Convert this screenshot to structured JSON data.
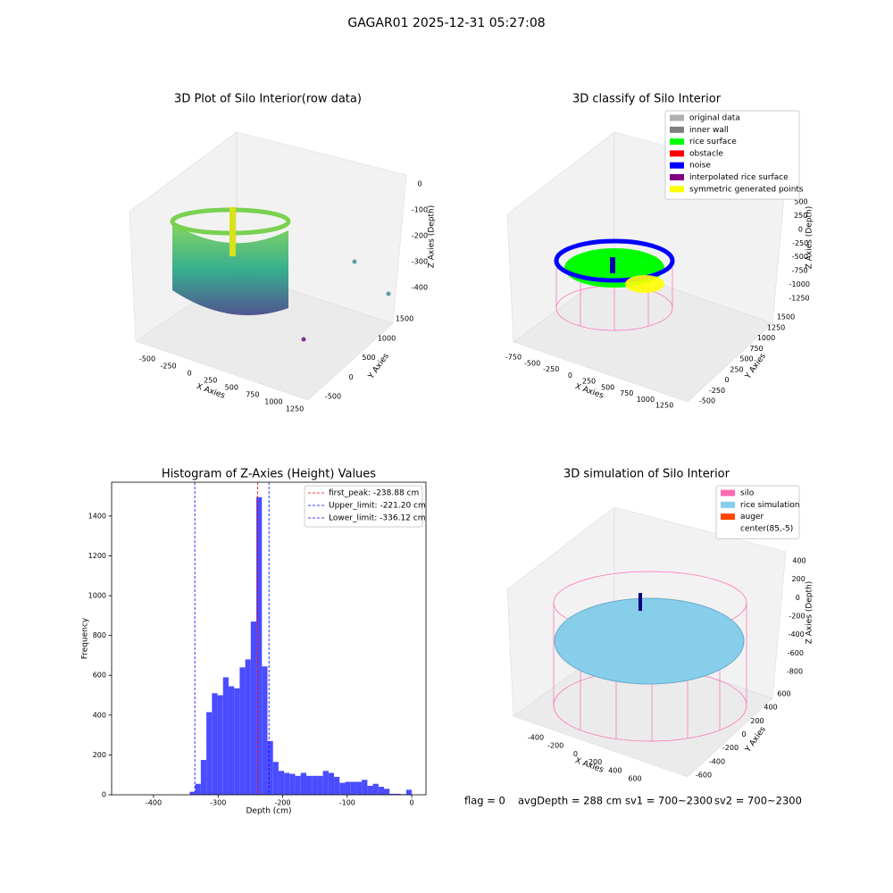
{
  "title": "GAGAR01 2025-12-31 05:27:08",
  "status": [
    "flag = 0",
    "avgDepth = 288 cm",
    "sv1 = 700~2300",
    "sv2 = 700~2300"
  ],
  "chart_data": [
    {
      "type": "scatter3d",
      "title": "3D Plot of Silo Interior(row data)",
      "xlabel": "X Axies",
      "ylabel": "Y Axies",
      "zlabel": "Z Axies (Depth)",
      "xticks": [
        -500,
        -250,
        0,
        250,
        500,
        750,
        1000,
        1250
      ],
      "yticks": [
        -500,
        0,
        500,
        1000,
        1500
      ],
      "zticks": [
        0,
        -100,
        -200,
        -300,
        -400
      ]
    },
    {
      "type": "scatter3d",
      "title": "3D classify of Silo Interior",
      "xlabel": "X Axies",
      "ylabel": "Y Axies",
      "zlabel": "Z Axies (Depth)",
      "xticks": [
        -750,
        -500,
        -250,
        0,
        250,
        500,
        750,
        1000,
        1250
      ],
      "yticks": [
        -500,
        -250,
        0,
        250,
        500,
        750,
        1000,
        1250,
        1500
      ],
      "zticks": [
        500,
        250,
        0,
        -250,
        -500,
        -750,
        -1000,
        -1250
      ],
      "legend": [
        {
          "name": "original data",
          "color": "#b0b0b0"
        },
        {
          "name": "inner wall",
          "color": "#808080"
        },
        {
          "name": "rice surface",
          "color": "#00ff00"
        },
        {
          "name": "obstacle",
          "color": "#ff0000"
        },
        {
          "name": "noise",
          "color": "#0000ff"
        },
        {
          "name": "interpolated rice surface",
          "color": "#800080"
        },
        {
          "name": "symmetric generated points",
          "color": "#ffff00"
        }
      ]
    },
    {
      "type": "histogram",
      "title": "Histogram of Z-Axies (Height) Values",
      "xlabel": "Depth (cm)",
      "ylabel": "Frequency",
      "color": "#4c4cff",
      "bins": [
        -344,
        -335.4,
        -326.8,
        -318.2,
        -309.6,
        -301,
        -292.4,
        -283.8,
        -275.2,
        -266.6,
        -258,
        -249.4,
        -240.8,
        -232.2,
        -223.6,
        -215,
        -206.4,
        -197.8,
        -189.2,
        -180.6,
        -172,
        -163.4,
        -154.8,
        -146.2,
        -137.6,
        -129,
        -120.4,
        -111.8,
        -103.2,
        -94.6,
        -86,
        -77.4,
        -68.8,
        -60.2,
        -51.6,
        -43,
        -34.4,
        -25.8,
        -17.2,
        -8.6,
        0
      ],
      "counts": [
        15,
        55,
        175,
        415,
        510,
        500,
        590,
        545,
        535,
        640,
        680,
        870,
        1495,
        645,
        270,
        165,
        120,
        110,
        105,
        95,
        110,
        95,
        95,
        95,
        120,
        110,
        90,
        60,
        65,
        65,
        65,
        75,
        45,
        55,
        40,
        30,
        5,
        5,
        3,
        25
      ],
      "xlim": [
        -465,
        22
      ],
      "ylim": [
        0,
        1570
      ],
      "xticks": [
        -400,
        -300,
        -200,
        -100,
        0
      ],
      "yticks": [
        0,
        200,
        400,
        600,
        800,
        1000,
        1200,
        1400
      ],
      "lines": [
        {
          "value": -238.88,
          "label": "first_peak: -238.88 cm",
          "color": "#ff0000"
        },
        {
          "value": -221.2,
          "label": "Upper_limit: -221.20 cm",
          "color": "#0000ff"
        },
        {
          "value": -336.12,
          "label": "Lower_limit: -336.12 cm",
          "color": "#0000ff"
        }
      ]
    },
    {
      "type": "scatter3d",
      "title": "3D simulation of Silo Interior",
      "xlabel": "X Axies",
      "ylabel": "Y Axies",
      "zlabel": "Z Axies (Depth)",
      "xticks": [
        -400,
        -200,
        0,
        200,
        400,
        600
      ],
      "yticks": [
        -600,
        -400,
        -200,
        0,
        200,
        400,
        600
      ],
      "zticks": [
        400,
        200,
        0,
        -200,
        -400,
        -600,
        -800
      ],
      "legend": [
        {
          "name": "silo",
          "color": "#ff69b4"
        },
        {
          "name": "rice simulation",
          "color": "#87ceeb"
        },
        {
          "name": "auger",
          "color": "#ff4500"
        },
        {
          "name": "center(85,-5)"
        }
      ]
    }
  ]
}
